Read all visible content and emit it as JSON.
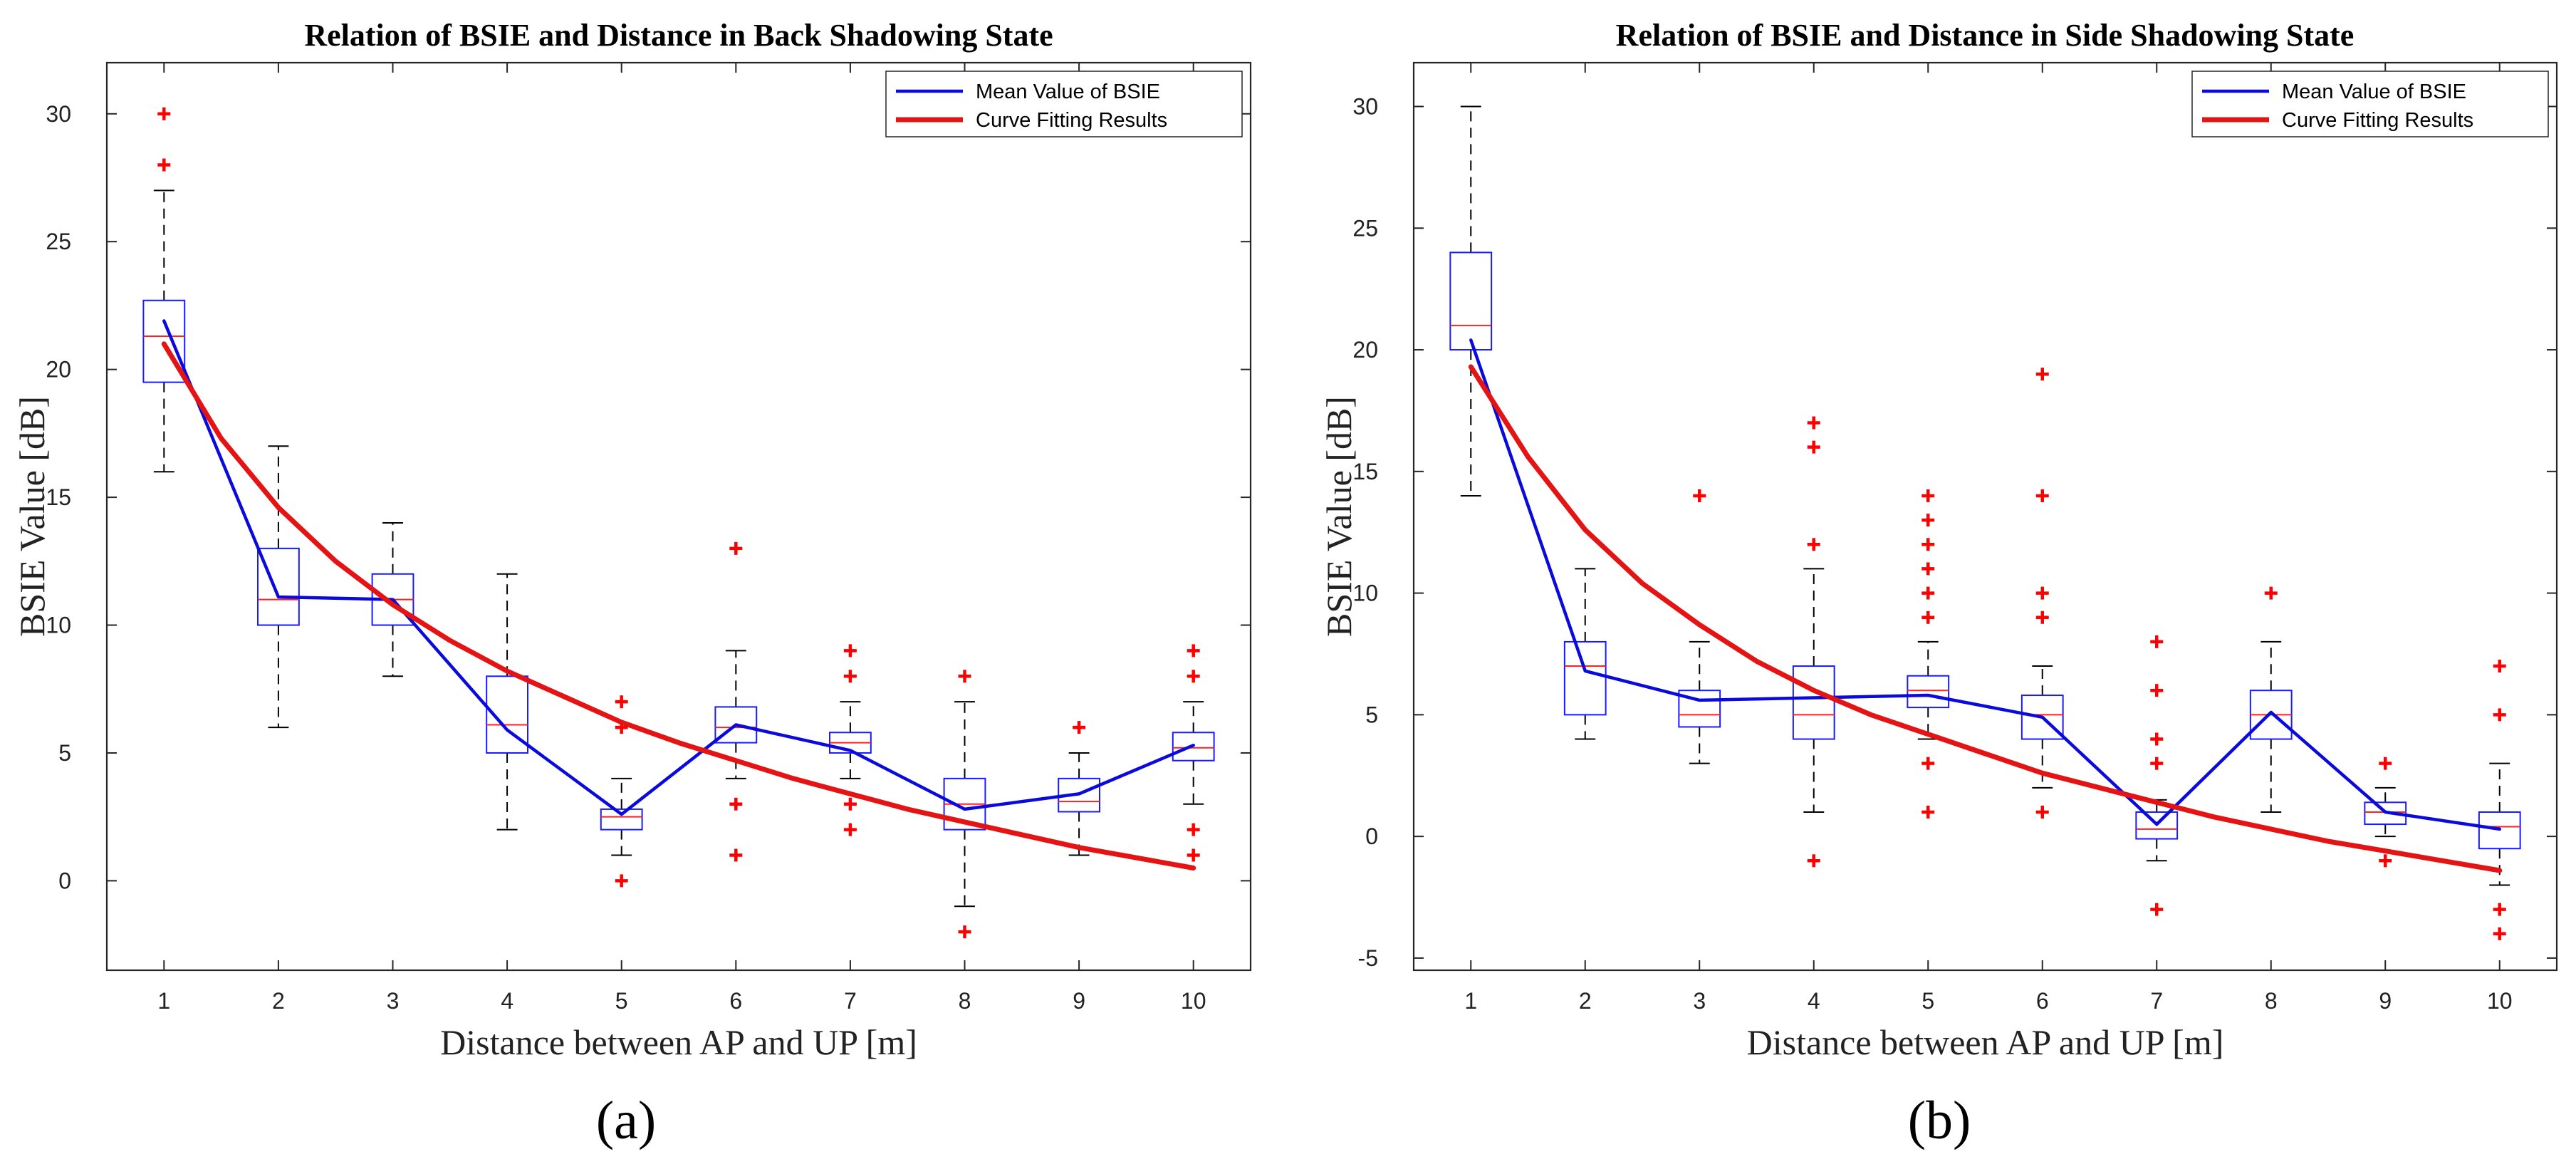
{
  "chart_data": [
    {
      "type": "box",
      "panel_label": "(a)",
      "title": "Relation of BSIE and Distance in Back Shadowing State",
      "xlabel": "Distance between AP and UP [m]",
      "ylabel": "BSIE Value [dB]",
      "xlim": [
        0.5,
        10.5
      ],
      "ylim": [
        -3.5,
        32
      ],
      "xticks": [
        1,
        2,
        3,
        4,
        5,
        6,
        7,
        8,
        9,
        10
      ],
      "yticks": [
        0,
        5,
        10,
        15,
        20,
        25,
        30
      ],
      "legend": {
        "position": "top-right",
        "entries": [
          "Mean Value of BSIE",
          "Curve Fitting Results"
        ]
      },
      "boxes": [
        {
          "x": 1,
          "whisker_low": 16,
          "q1": 19.5,
          "median": 21.3,
          "q3": 22.7,
          "whisker_high": 27,
          "outliers": [
            28,
            30
          ]
        },
        {
          "x": 2,
          "whisker_low": 6,
          "q1": 10,
          "median": 11,
          "q3": 13,
          "whisker_high": 17,
          "outliers": []
        },
        {
          "x": 3,
          "whisker_low": 8,
          "q1": 10,
          "median": 11,
          "q3": 12,
          "whisker_high": 14,
          "outliers": []
        },
        {
          "x": 4,
          "whisker_low": 2,
          "q1": 5,
          "median": 6.1,
          "q3": 8,
          "whisker_high": 12,
          "outliers": []
        },
        {
          "x": 5,
          "whisker_low": 1,
          "q1": 2,
          "median": 2.5,
          "q3": 2.8,
          "whisker_high": 4,
          "outliers": [
            0,
            6,
            7
          ]
        },
        {
          "x": 6,
          "whisker_low": 4,
          "q1": 5.4,
          "median": 6,
          "q3": 6.8,
          "whisker_high": 9,
          "outliers": [
            1,
            3,
            13
          ]
        },
        {
          "x": 7,
          "whisker_low": 4,
          "q1": 5,
          "median": 5.4,
          "q3": 5.8,
          "whisker_high": 7,
          "outliers": [
            2,
            3,
            8,
            9
          ]
        },
        {
          "x": 8,
          "whisker_low": -1,
          "q1": 2,
          "median": 3,
          "q3": 4,
          "whisker_high": 7,
          "outliers": [
            -2,
            8
          ]
        },
        {
          "x": 9,
          "whisker_low": 1,
          "q1": 2.7,
          "median": 3.1,
          "q3": 4,
          "whisker_high": 5,
          "outliers": [
            6
          ]
        },
        {
          "x": 10,
          "whisker_low": 3,
          "q1": 4.7,
          "median": 5.2,
          "q3": 5.8,
          "whisker_high": 7,
          "outliers": [
            1,
            2,
            8,
            9
          ]
        }
      ],
      "series": [
        {
          "name": "Mean Value of BSIE",
          "color": "#0a0adc",
          "x": [
            1,
            2,
            3,
            4,
            5,
            6,
            7,
            8,
            9,
            10
          ],
          "values": [
            21.9,
            11.1,
            11,
            5.9,
            2.6,
            6.1,
            5.1,
            2.8,
            3.4,
            5.3
          ]
        },
        {
          "name": "Curve Fitting Results",
          "color": "#e41414",
          "x": [
            1,
            1.5,
            2,
            2.5,
            3,
            3.5,
            4,
            4.5,
            5,
            5.5,
            6,
            6.5,
            7,
            7.5,
            8,
            8.5,
            9,
            9.5,
            10
          ],
          "values": [
            21,
            17.3,
            14.6,
            12.5,
            10.8,
            9.4,
            8.2,
            7.2,
            6.2,
            5.4,
            4.7,
            4,
            3.4,
            2.8,
            2.3,
            1.8,
            1.3,
            0.9,
            0.5
          ]
        }
      ]
    },
    {
      "type": "box",
      "panel_label": "(b)",
      "title": "Relation of BSIE and Distance in Side Shadowing State",
      "xlabel": "Distance between AP and UP [m]",
      "ylabel": "BSIE Value [dB]",
      "xlim": [
        0.5,
        10.5
      ],
      "ylim": [
        -5.5,
        31.8
      ],
      "xticks": [
        1,
        2,
        3,
        4,
        5,
        6,
        7,
        8,
        9,
        10
      ],
      "yticks": [
        -5,
        0,
        5,
        10,
        15,
        20,
        25,
        30
      ],
      "legend": {
        "position": "top-right",
        "entries": [
          "Mean Value of BSIE",
          "Curve Fitting Results"
        ]
      },
      "boxes": [
        {
          "x": 1,
          "whisker_low": 14,
          "q1": 20,
          "median": 21,
          "q3": 24,
          "whisker_high": 30,
          "outliers": []
        },
        {
          "x": 2,
          "whisker_low": 4,
          "q1": 5,
          "median": 7,
          "q3": 8,
          "whisker_high": 11,
          "outliers": []
        },
        {
          "x": 3,
          "whisker_low": 3,
          "q1": 4.5,
          "median": 5,
          "q3": 6,
          "whisker_high": 8,
          "outliers": [
            14
          ]
        },
        {
          "x": 4,
          "whisker_low": 1,
          "q1": 4,
          "median": 5,
          "q3": 7,
          "whisker_high": 11,
          "outliers": [
            -1,
            12,
            16,
            17
          ]
        },
        {
          "x": 5,
          "whisker_low": 4,
          "q1": 5.3,
          "median": 6,
          "q3": 6.6,
          "whisker_high": 8,
          "outliers": [
            1,
            3,
            9,
            10,
            11,
            12,
            13,
            14
          ]
        },
        {
          "x": 6,
          "whisker_low": 2,
          "q1": 4,
          "median": 5,
          "q3": 5.8,
          "whisker_high": 7,
          "outliers": [
            1,
            9,
            10,
            14,
            19
          ]
        },
        {
          "x": 7,
          "whisker_low": -1,
          "q1": -0.1,
          "median": 0.3,
          "q3": 1,
          "whisker_high": 1.5,
          "outliers": [
            -3,
            3,
            4,
            6,
            8
          ]
        },
        {
          "x": 8,
          "whisker_low": 1,
          "q1": 4,
          "median": 5,
          "q3": 6,
          "whisker_high": 8,
          "outliers": [
            10
          ]
        },
        {
          "x": 9,
          "whisker_low": 0,
          "q1": 0.5,
          "median": 1,
          "q3": 1.4,
          "whisker_high": 2,
          "outliers": [
            -1,
            3
          ]
        },
        {
          "x": 10,
          "whisker_low": -2,
          "q1": -0.5,
          "median": 0.4,
          "q3": 1,
          "whisker_high": 3,
          "outliers": [
            -4,
            -3,
            5,
            7
          ]
        }
      ],
      "series": [
        {
          "name": "Mean Value of BSIE",
          "color": "#0a0adc",
          "x": [
            1,
            2,
            3,
            4,
            5,
            6,
            7,
            8,
            9,
            10
          ],
          "values": [
            20.4,
            6.8,
            5.6,
            5.7,
            5.8,
            4.9,
            0.5,
            5.1,
            1,
            0.3
          ]
        },
        {
          "name": "Curve Fitting Results",
          "color": "#e41414",
          "x": [
            1,
            1.5,
            2,
            2.5,
            3,
            3.5,
            4,
            4.5,
            5,
            5.5,
            6,
            6.5,
            7,
            7.5,
            8,
            8.5,
            9,
            9.5,
            10
          ],
          "values": [
            19.3,
            15.6,
            12.6,
            10.4,
            8.7,
            7.2,
            6,
            5,
            4.2,
            3.4,
            2.6,
            2,
            1.4,
            0.8,
            0.3,
            -0.2,
            -0.6,
            -1,
            -1.4
          ]
        }
      ]
    }
  ]
}
